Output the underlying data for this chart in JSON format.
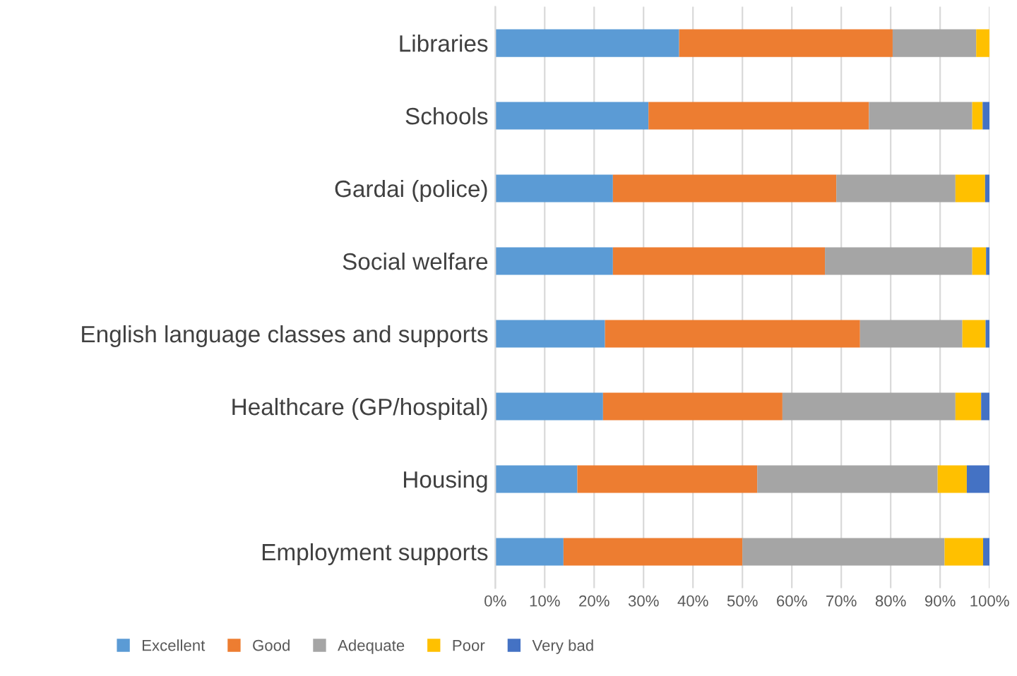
{
  "chart_data": {
    "type": "bar",
    "orientation": "horizontal",
    "stacked": true,
    "grid": "x",
    "legend": "bottom",
    "categories": [
      "Libraries",
      "Schools",
      "Gardai (police)",
      "Social welfare",
      "English language classes and supports",
      "Healthcare (GP/hospital)",
      "Housing",
      "Employment supports"
    ],
    "series": [
      {
        "name": "Excellent",
        "color": "#5b9bd5",
        "values": [
          37.2,
          31,
          23.8,
          23.8,
          22.2,
          21.8,
          16.6,
          13.8
        ]
      },
      {
        "name": "Good",
        "color": "#ed7d31",
        "values": [
          43.2,
          44.6,
          45.2,
          42.9,
          51.6,
          36.3,
          36.4,
          36.2
        ]
      },
      {
        "name": "Adequate",
        "color": "#a5a5a5",
        "values": [
          16.9,
          20.9,
          24.1,
          29.8,
          20.7,
          35.0,
          36.5,
          40.9
        ]
      },
      {
        "name": "Poor",
        "color": "#ffc000",
        "values": [
          2.7,
          2.1,
          6.0,
          2.8,
          4.7,
          5.2,
          5.9,
          7.8
        ]
      },
      {
        "name": "Very bad",
        "color": "#4472c4",
        "values": [
          0,
          1.4,
          0.9,
          0.7,
          0.8,
          1.7,
          4.6,
          1.3
        ]
      }
    ],
    "xlim": [
      0,
      100
    ],
    "xticks": [
      {
        "value": 0,
        "label": "0%"
      },
      {
        "value": 10,
        "label": "10%"
      },
      {
        "value": 20,
        "label": "20%"
      },
      {
        "value": 30,
        "label": "30%"
      },
      {
        "value": 40,
        "label": "40%"
      },
      {
        "value": 50,
        "label": "50%"
      },
      {
        "value": 60,
        "label": "60%"
      },
      {
        "value": 70,
        "label": "70%"
      },
      {
        "value": 80,
        "label": "80%"
      },
      {
        "value": 90,
        "label": "90%"
      },
      {
        "value": 100,
        "label": "100%"
      }
    ]
  }
}
